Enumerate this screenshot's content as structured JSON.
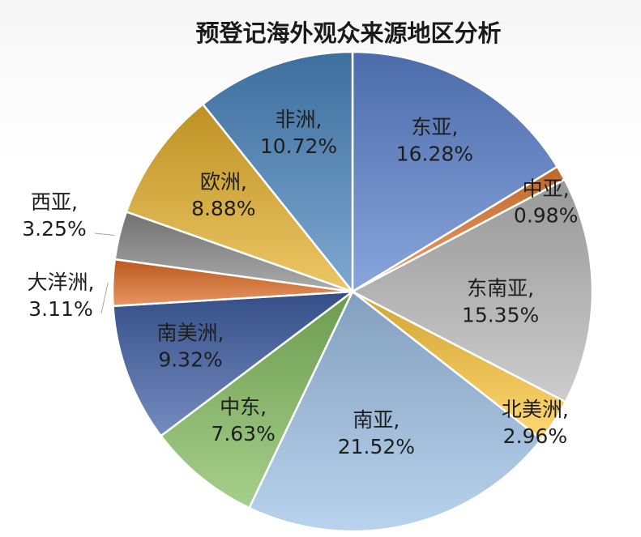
{
  "chart_data": {
    "type": "pie",
    "title": "预登记海外观众来源地区分析",
    "slices": [
      {
        "label": "东亚",
        "value": 16.28,
        "display": "16.28%",
        "color": "#5b82cf"
      },
      {
        "label": "中亚",
        "value": 0.98,
        "display": "0.98%",
        "color": "#e97d34"
      },
      {
        "label": "东南亚",
        "value": 15.35,
        "display": "15.35%",
        "color": "#b9b9b9"
      },
      {
        "label": "北美洲",
        "value": 2.96,
        "display": "2.96%",
        "color": "#ffc83d"
      },
      {
        "label": "南亚",
        "value": 21.52,
        "display": "21.52%",
        "color": "#9ec2e8"
      },
      {
        "label": "中东",
        "value": 7.63,
        "display": "7.63%",
        "color": "#84bd5f"
      },
      {
        "label": "南美洲",
        "value": 9.32,
        "display": "9.32%",
        "color": "#3f5fa6"
      },
      {
        "label": "大洋洲",
        "value": 3.11,
        "display": "3.11%",
        "color": "#e06c25"
      },
      {
        "label": "西亚",
        "value": 3.25,
        "display": "3.25%",
        "color": "#8a8a8a"
      },
      {
        "label": "欧洲",
        "value": 8.88,
        "display": "8.88%",
        "color": "#e6b12a"
      },
      {
        "label": "非洲",
        "value": 10.72,
        "display": "10.72%",
        "color": "#4a86bf"
      }
    ]
  }
}
